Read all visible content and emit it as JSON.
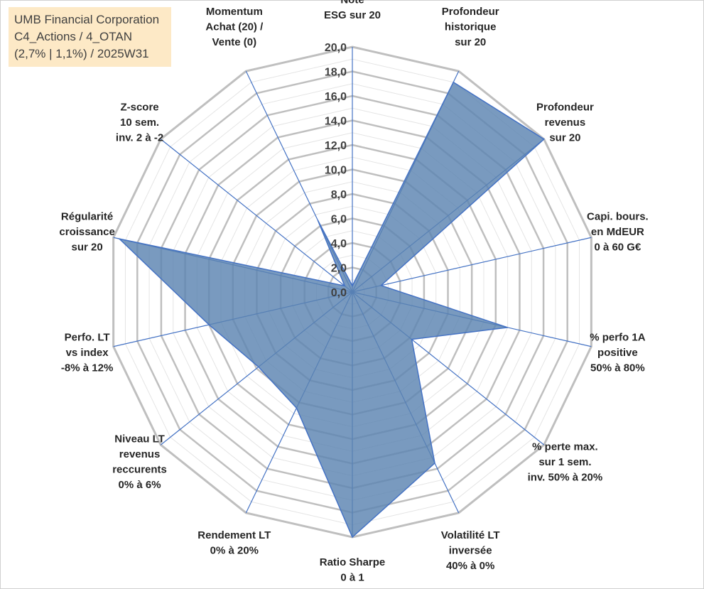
{
  "title": {
    "line1": "UMB Financial Corporation",
    "line2": "C4_Actions / 4_OTAN",
    "line3": "(2,7% | 1,1%) / 2025W31"
  },
  "chart_data": {
    "type": "radar",
    "rmin": 0,
    "rmax": 20,
    "tick_step": 2,
    "ticks": [
      "0,0",
      "2,0",
      "4,0",
      "6,0",
      "8,0",
      "10,0",
      "12,0",
      "14,0",
      "16,0",
      "18,0",
      "20,0"
    ],
    "axes": [
      {
        "label": [
          "Note",
          "ESG sur 20"
        ],
        "value": 0.5
      },
      {
        "label": [
          "Profondeur",
          "historique",
          "sur 20"
        ],
        "value": 19.0
      },
      {
        "label": [
          "Profondeur",
          "revenus",
          "sur 20"
        ],
        "value": 20.0
      },
      {
        "label": [
          "Capi. bours.",
          "en MdEUR",
          "0 à 60 G€"
        ],
        "value": 2.4
      },
      {
        "label": [
          "% perfo 1A",
          "positive",
          "50% à 80%"
        ],
        "value": 13.0
      },
      {
        "label": [
          "% perte max.",
          "sur 1 sem.",
          "inv. 50% à 20%"
        ],
        "value": 6.2
      },
      {
        "label": [
          "Volatilité LT",
          "inversée",
          "40% à 0%"
        ],
        "value": 15.5
      },
      {
        "label": [
          "Ratio Sharpe",
          "0 à 1"
        ],
        "value": 20.0
      },
      {
        "label": [
          "Rendement LT",
          "0% à 20%"
        ],
        "value": 10.5
      },
      {
        "label": [
          "Niveau LT",
          "revenus",
          "reccurents",
          "0% à 6%"
        ],
        "value": 9.8
      },
      {
        "label": [
          "Perfo. LT",
          "vs index",
          "-8% à 12%"
        ],
        "value": 12.0
      },
      {
        "label": [
          "Régularité",
          "croissance",
          "sur 20"
        ],
        "value": 19.5
      },
      {
        "label": [
          "Z-score",
          "10 sem.",
          "inv. 2 à -2"
        ],
        "value": 0.8
      },
      {
        "label": [
          "Momentum",
          "Achat (20) /",
          "Vente (0)"
        ],
        "value": 6.5
      }
    ],
    "colors": {
      "grid": "#bfbfbf",
      "spoke": "#4472c4",
      "fill": "#5b84b1",
      "stroke": "#4472c4"
    }
  }
}
